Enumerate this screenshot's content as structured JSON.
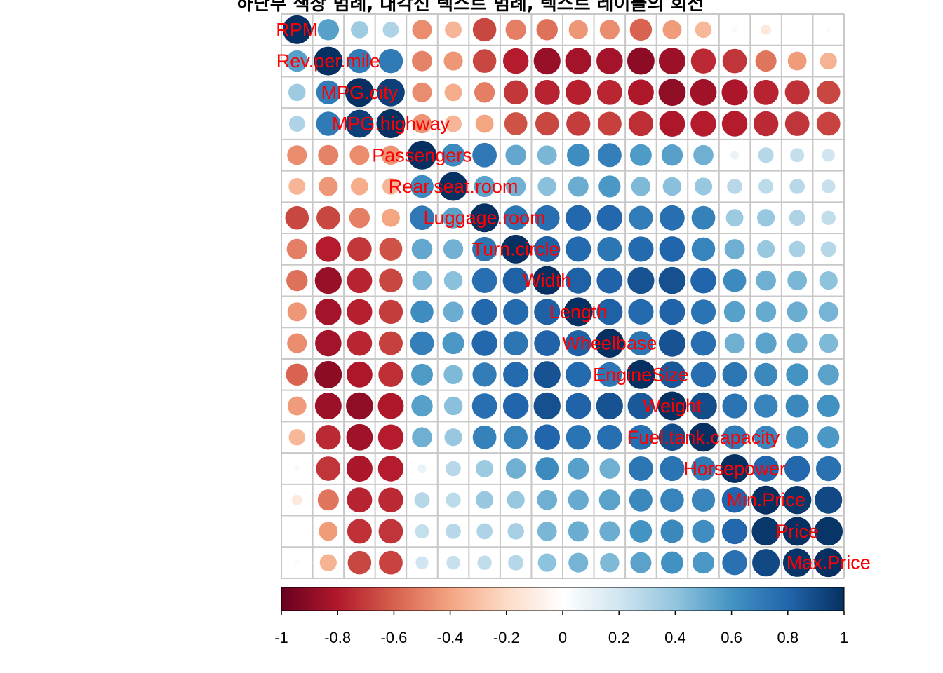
{
  "chart_data": {
    "type": "heatmap",
    "subtype": "correlation-circles",
    "title": "하단부 색상 범례, 대각선 텍스트 범례, 텍스트 레이블의 회전",
    "variables": [
      "RPM",
      "Rev.per.mile",
      "MPG.city",
      "MPG.highway",
      "Passengers",
      "Rear.seat.room",
      "Luggage.room",
      "Turn.circle",
      "Width",
      "Length",
      "Wheelbase",
      "EngineSize",
      "Weight",
      "Fuel.tank.capacity",
      "Horsepower",
      "Min.Price",
      "Price",
      "Max.Price"
    ],
    "matrix": [
      [
        1,
        0.55,
        0.36,
        0.31,
        -0.47,
        -0.34,
        -0.67,
        -0.51,
        -0.55,
        -0.44,
        -0.47,
        -0.59,
        -0.43,
        -0.33,
        0.04,
        -0.13,
        -0.005,
        0.03
      ],
      [
        0.55,
        1,
        0.7,
        0.71,
        -0.5,
        -0.44,
        -0.67,
        -0.79,
        -0.87,
        -0.84,
        -0.84,
        -0.9,
        -0.86,
        -0.75,
        -0.72,
        -0.54,
        -0.43,
        -0.35
      ],
      [
        0.36,
        0.7,
        1,
        0.94,
        -0.47,
        -0.37,
        -0.51,
        -0.71,
        -0.77,
        -0.78,
        -0.76,
        -0.81,
        -0.89,
        -0.85,
        -0.82,
        -0.77,
        -0.73,
        -0.67
      ],
      [
        0.31,
        0.71,
        0.94,
        1,
        -0.45,
        -0.34,
        -0.4,
        -0.64,
        -0.67,
        -0.7,
        -0.69,
        -0.74,
        -0.81,
        -0.79,
        -0.79,
        -0.75,
        -0.72,
        -0.68
      ],
      [
        -0.47,
        -0.5,
        -0.47,
        -0.45,
        1,
        0.64,
        0.72,
        0.52,
        0.46,
        0.63,
        0.69,
        0.57,
        0.55,
        0.49,
        0.09,
        0.29,
        0.24,
        0.2
      ],
      [
        -0.34,
        -0.44,
        -0.37,
        -0.34,
        0.64,
        1,
        0.54,
        0.48,
        0.42,
        0.5,
        0.58,
        0.45,
        0.42,
        0.38,
        0.28,
        0.27,
        0.28,
        0.23
      ],
      [
        -0.67,
        -0.67,
        -0.51,
        -0.4,
        0.72,
        0.54,
        1,
        0.73,
        0.76,
        0.79,
        0.79,
        0.7,
        0.76,
        0.68,
        0.37,
        0.38,
        0.31,
        0.25
      ],
      [
        -0.51,
        -0.79,
        -0.71,
        -0.64,
        0.52,
        0.48,
        0.73,
        1,
        0.82,
        0.78,
        0.73,
        0.78,
        0.8,
        0.67,
        0.49,
        0.38,
        0.33,
        0.29
      ],
      [
        -0.55,
        -0.87,
        -0.77,
        -0.67,
        0.46,
        0.42,
        0.76,
        0.82,
        1,
        0.82,
        0.81,
        0.87,
        0.88,
        0.8,
        0.64,
        0.49,
        0.46,
        0.41
      ],
      [
        -0.44,
        -0.84,
        -0.78,
        -0.7,
        0.63,
        0.5,
        0.79,
        0.78,
        0.82,
        1,
        0.82,
        0.78,
        0.81,
        0.74,
        0.55,
        0.51,
        0.5,
        0.47
      ],
      [
        -0.47,
        -0.84,
        -0.76,
        -0.69,
        0.69,
        0.58,
        0.79,
        0.73,
        0.81,
        0.82,
        1,
        0.73,
        0.87,
        0.76,
        0.49,
        0.54,
        0.5,
        0.45
      ],
      [
        -0.59,
        -0.9,
        -0.81,
        -0.74,
        0.57,
        0.45,
        0.7,
        0.78,
        0.87,
        0.78,
        0.73,
        1,
        0.85,
        0.76,
        0.73,
        0.65,
        0.6,
        0.54
      ],
      [
        -0.43,
        -0.86,
        -0.89,
        -0.81,
        0.55,
        0.42,
        0.76,
        0.8,
        0.88,
        0.81,
        0.87,
        0.85,
        1,
        0.89,
        0.74,
        0.67,
        0.65,
        0.61
      ],
      [
        -0.33,
        -0.75,
        -0.85,
        -0.79,
        0.49,
        0.38,
        0.68,
        0.67,
        0.8,
        0.74,
        0.76,
        0.76,
        0.89,
        1,
        0.71,
        0.66,
        0.62,
        0.58
      ],
      [
        0.04,
        -0.72,
        -0.82,
        -0.79,
        0.09,
        0.28,
        0.37,
        0.49,
        0.64,
        0.55,
        0.49,
        0.73,
        0.74,
        0.71,
        1,
        0.8,
        0.79,
        0.75
      ],
      [
        -0.13,
        -0.54,
        -0.77,
        -0.75,
        0.29,
        0.27,
        0.38,
        0.38,
        0.49,
        0.51,
        0.54,
        0.65,
        0.67,
        0.66,
        0.8,
        1,
        0.97,
        0.91
      ],
      [
        -0.005,
        -0.43,
        -0.73,
        -0.72,
        0.24,
        0.28,
        0.31,
        0.33,
        0.46,
        0.5,
        0.5,
        0.6,
        0.65,
        0.62,
        0.79,
        0.97,
        1,
        0.98
      ],
      [
        0.03,
        -0.35,
        -0.67,
        -0.68,
        0.2,
        0.23,
        0.25,
        0.29,
        0.41,
        0.47,
        0.45,
        0.54,
        0.61,
        0.58,
        0.75,
        0.91,
        0.98,
        1
      ]
    ],
    "colorbar": {
      "placement": "bottom",
      "range": [
        -1,
        1
      ],
      "ticks": [
        "-1",
        "-0.8",
        "-0.6",
        "-0.4",
        "-0.2",
        "0",
        "0.2",
        "0.4",
        "0.6",
        "0.8",
        "1"
      ]
    },
    "label_color": "#ff0000",
    "palette": [
      "#67001f",
      "#b2182b",
      "#d6604d",
      "#f4a582",
      "#fddbc7",
      "#ffffff",
      "#d1e5f0",
      "#92c5de",
      "#4393c3",
      "#2166ac",
      "#053061"
    ]
  }
}
